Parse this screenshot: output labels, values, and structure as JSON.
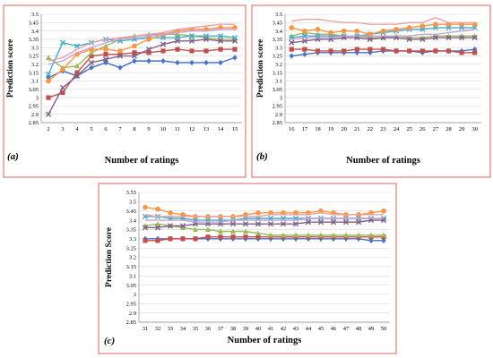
{
  "chart_data": [
    {
      "type": "line",
      "panel_label": "(a)",
      "xlabel": "Number of ratings",
      "ylabel": "Prediction score",
      "ylim": [
        2.85,
        3.5
      ],
      "yticks": [
        "2.85",
        "2.9",
        "2.95",
        "3",
        "3.05",
        "3.1",
        "3.15",
        "3.2",
        "3.25",
        "3.3",
        "3.35",
        "3.4",
        "3.45",
        "3.5"
      ],
      "x": [
        2,
        3,
        4,
        5,
        6,
        7,
        8,
        9,
        10,
        11,
        12,
        13,
        14,
        15
      ],
      "grid": true,
      "series": [
        {
          "color": "#4472c4",
          "marker": "diamond",
          "values": [
            3.12,
            3.16,
            3.13,
            3.18,
            3.21,
            3.18,
            3.22,
            3.22,
            3.22,
            3.21,
            3.21,
            3.21,
            3.21,
            3.24
          ]
        },
        {
          "color": "#c0504d",
          "marker": "square",
          "values": [
            3.0,
            3.03,
            3.15,
            3.25,
            3.26,
            3.26,
            3.27,
            3.27,
            3.28,
            3.29,
            3.28,
            3.28,
            3.29,
            3.29
          ]
        },
        {
          "color": "#9bbb59",
          "marker": "triangle",
          "values": [
            3.24,
            3.18,
            3.19,
            3.27,
            3.31,
            3.35,
            3.37,
            3.38,
            3.38,
            3.38,
            3.37,
            3.36,
            3.35,
            3.35
          ]
        },
        {
          "color": "#4bacc6",
          "marker": "x",
          "values": [
            3.14,
            3.33,
            3.31,
            3.33,
            3.35,
            3.34,
            3.35,
            3.36,
            3.36,
            3.36,
            3.37,
            3.37,
            3.37,
            3.36
          ]
        },
        {
          "color": "#f79646",
          "marker": "circle",
          "values": [
            3.1,
            3.17,
            3.26,
            3.29,
            3.29,
            3.28,
            3.31,
            3.35,
            3.38,
            3.4,
            3.41,
            3.41,
            3.42,
            3.42
          ]
        },
        {
          "color": "#7f6084",
          "marker": "x",
          "values": [
            2.9,
            3.06,
            3.13,
            3.21,
            3.23,
            3.25,
            3.25,
            3.29,
            3.32,
            3.34,
            3.34,
            3.35,
            3.34,
            3.34
          ]
        },
        {
          "color": "#e8a0a8",
          "marker": "none",
          "values": [
            3.22,
            3.24,
            3.29,
            3.33,
            3.35,
            3.36,
            3.37,
            3.38,
            3.39,
            3.41,
            3.42,
            3.43,
            3.44,
            3.44
          ]
        },
        {
          "color": "#c9a0d8",
          "marker": "none",
          "values": [
            3.2,
            3.22,
            3.27,
            3.3,
            3.33,
            3.35,
            3.36,
            3.37,
            3.38,
            3.39,
            3.4,
            3.4,
            3.41,
            3.41
          ]
        }
      ]
    },
    {
      "type": "line",
      "panel_label": "(b)",
      "xlabel": "Number of ratings",
      "ylabel": "Prediction score",
      "ylim": [
        2.85,
        3.5
      ],
      "yticks": [
        "2.85",
        "2.9",
        "2.95",
        "3",
        "3.05",
        "3.1",
        "3.15",
        "3.2",
        "3.25",
        "3.3",
        "3.35",
        "3.4",
        "3.45",
        "3.5"
      ],
      "x": [
        16,
        17,
        18,
        19,
        20,
        21,
        22,
        23,
        24,
        25,
        26,
        27,
        28,
        29,
        30
      ],
      "grid": true,
      "series": [
        {
          "color": "#4472c4",
          "marker": "diamond",
          "values": [
            3.25,
            3.26,
            3.27,
            3.27,
            3.27,
            3.27,
            3.27,
            3.28,
            3.28,
            3.28,
            3.27,
            3.28,
            3.28,
            3.28,
            3.29
          ]
        },
        {
          "color": "#c0504d",
          "marker": "square",
          "values": [
            3.29,
            3.29,
            3.28,
            3.28,
            3.28,
            3.29,
            3.29,
            3.29,
            3.28,
            3.28,
            3.28,
            3.28,
            3.28,
            3.27,
            3.27
          ]
        },
        {
          "color": "#9bbb59",
          "marker": "triangle",
          "values": [
            3.37,
            3.39,
            3.38,
            3.38,
            3.37,
            3.37,
            3.36,
            3.36,
            3.37,
            3.36,
            3.36,
            3.37,
            3.37,
            3.37,
            3.37
          ]
        },
        {
          "color": "#4bacc6",
          "marker": "x",
          "values": [
            3.36,
            3.37,
            3.37,
            3.37,
            3.37,
            3.37,
            3.38,
            3.39,
            3.4,
            3.41,
            3.41,
            3.42,
            3.42,
            3.42,
            3.42
          ]
        },
        {
          "color": "#f79646",
          "marker": "circle",
          "values": [
            3.42,
            3.4,
            3.41,
            3.39,
            3.4,
            3.4,
            3.38,
            3.4,
            3.41,
            3.42,
            3.43,
            3.44,
            3.44,
            3.44,
            3.44
          ]
        },
        {
          "color": "#7f6084",
          "marker": "x",
          "values": [
            3.33,
            3.34,
            3.35,
            3.35,
            3.36,
            3.36,
            3.35,
            3.36,
            3.36,
            3.35,
            3.35,
            3.36,
            3.36,
            3.36,
            3.36
          ]
        },
        {
          "color": "#e8a0a8",
          "marker": "none",
          "values": [
            3.46,
            3.47,
            3.47,
            3.46,
            3.45,
            3.45,
            3.44,
            3.44,
            3.44,
            3.45,
            3.45,
            3.48,
            3.45,
            3.45,
            3.45
          ]
        },
        {
          "color": "#c9a0d8",
          "marker": "none",
          "values": [
            3.35,
            3.36,
            3.36,
            3.36,
            3.37,
            3.37,
            3.37,
            3.37,
            3.37,
            3.37,
            3.38,
            3.38,
            3.39,
            3.4,
            3.41
          ]
        }
      ]
    },
    {
      "type": "line",
      "panel_label": "(c)",
      "xlabel": "Number of ratings",
      "ylabel": "Prediction Score",
      "ylim": [
        2.85,
        3.55
      ],
      "yticks": [
        "2.85",
        "2.9",
        "2.95",
        "3",
        "3.05",
        "3.1",
        "3.15",
        "3.2",
        "3.25",
        "3.3",
        "3.35",
        "3.4",
        "3.45",
        "3.5",
        "3.55"
      ],
      "x": [
        31,
        32,
        33,
        34,
        35,
        36,
        37,
        38,
        39,
        40,
        41,
        42,
        43,
        44,
        45,
        46,
        47,
        48,
        49,
        50
      ],
      "grid": true,
      "series": [
        {
          "color": "#4472c4",
          "marker": "diamond",
          "values": [
            3.3,
            3.3,
            3.3,
            3.3,
            3.3,
            3.3,
            3.3,
            3.3,
            3.3,
            3.3,
            3.3,
            3.3,
            3.3,
            3.3,
            3.3,
            3.3,
            3.3,
            3.3,
            3.29,
            3.29
          ]
        },
        {
          "color": "#c0504d",
          "marker": "square",
          "values": [
            3.29,
            3.29,
            3.3,
            3.3,
            3.3,
            3.31,
            3.31,
            3.31,
            3.31,
            3.31,
            3.31,
            3.31,
            3.31,
            3.31,
            3.31,
            3.31,
            3.31,
            3.31,
            3.31,
            3.31
          ]
        },
        {
          "color": "#9bbb59",
          "marker": "triangle",
          "values": [
            3.37,
            3.38,
            3.37,
            3.36,
            3.35,
            3.35,
            3.34,
            3.34,
            3.34,
            3.33,
            3.32,
            3.32,
            3.32,
            3.32,
            3.32,
            3.32,
            3.32,
            3.32,
            3.32,
            3.32
          ]
        },
        {
          "color": "#4bacc6",
          "marker": "x",
          "values": [
            3.42,
            3.42,
            3.41,
            3.41,
            3.4,
            3.4,
            3.4,
            3.4,
            3.41,
            3.41,
            3.41,
            3.41,
            3.41,
            3.41,
            3.41,
            3.41,
            3.41,
            3.41,
            3.41,
            3.41
          ]
        },
        {
          "color": "#f79646",
          "marker": "circle",
          "values": [
            3.47,
            3.46,
            3.44,
            3.43,
            3.42,
            3.42,
            3.42,
            3.42,
            3.43,
            3.44,
            3.44,
            3.44,
            3.44,
            3.44,
            3.45,
            3.44,
            3.43,
            3.43,
            3.44,
            3.45
          ]
        },
        {
          "color": "#7f6084",
          "marker": "x",
          "values": [
            3.36,
            3.36,
            3.37,
            3.37,
            3.38,
            3.38,
            3.38,
            3.38,
            3.38,
            3.38,
            3.38,
            3.38,
            3.38,
            3.39,
            3.39,
            3.39,
            3.39,
            3.39,
            3.4,
            3.4
          ]
        },
        {
          "color": "#e8a0a8",
          "marker": "none",
          "values": [
            3.43,
            3.42,
            3.42,
            3.42,
            3.42,
            3.42,
            3.42,
            3.42,
            3.42,
            3.42,
            3.43,
            3.43,
            3.43,
            3.43,
            3.44,
            3.43,
            3.43,
            3.43,
            3.43,
            3.43
          ]
        },
        {
          "color": "#c9a0d8",
          "marker": "none",
          "values": [
            3.4,
            3.4,
            3.4,
            3.4,
            3.39,
            3.39,
            3.39,
            3.4,
            3.4,
            3.4,
            3.4,
            3.4,
            3.4,
            3.41,
            3.41,
            3.41,
            3.41,
            3.41,
            3.41,
            3.41
          ]
        }
      ]
    }
  ]
}
